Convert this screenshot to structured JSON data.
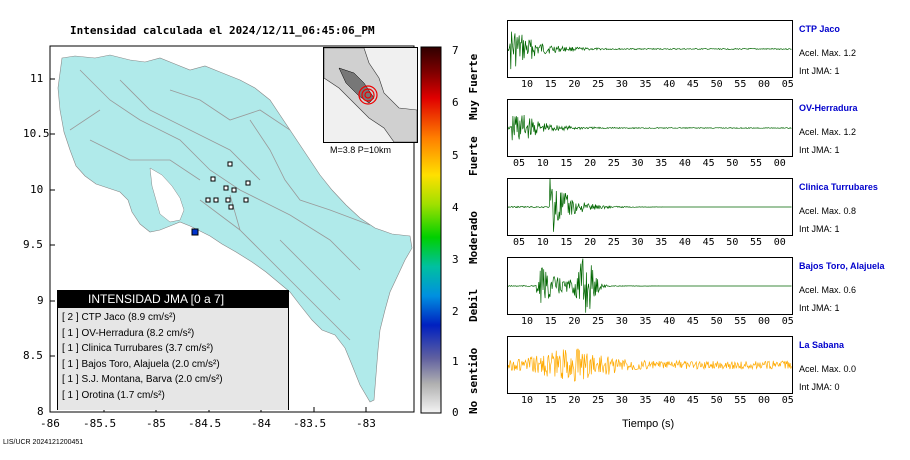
{
  "map": {
    "title": "Intensidad calculada el 2024/12/11_06:45:06_PM",
    "lat_ticks": [
      "11",
      "10.5",
      "10",
      "9.5",
      "9",
      "8.5",
      "8"
    ],
    "lon_ticks": [
      "-86",
      "-85.5",
      "-85",
      "-84.5",
      "-84",
      "-83.5",
      "-83"
    ],
    "event_text": "M=3.8 P=10km",
    "footer": "LIS/UCR 2024121200451"
  },
  "scale": {
    "ticks": [
      "7",
      "6",
      "5",
      "4",
      "3",
      "2",
      "1",
      "0"
    ],
    "labels": [
      "Muy Fuerte",
      "Fuerte",
      "Moderado",
      "Debil",
      "No sentido"
    ]
  },
  "legend": {
    "title": "INTENSIDAD JMA [0 a 7]",
    "rows": [
      "[ 2 ]  CTP Jaco (8.9 cm/s²)",
      "[ 1 ]  OV-Herradura (8.2 cm/s²)",
      "[ 1 ]  Clinica Turrubares (3.7 cm/s²)",
      "[ 1 ]  Bajos Toro, Alajuela (2.0 cm/s²)",
      "[ 1 ]  S.J. Montana, Barva (2.0 cm/s²)",
      "[ 1 ]  Orotina (1.7 cm/s²)"
    ]
  },
  "stations": [
    {
      "name": "CTP Jaco",
      "acc": "Acel. Max. 1.2",
      "int": "Int JMA: 1",
      "color": "#006600",
      "ticks": [
        "10",
        "15",
        "20",
        "25",
        "30",
        "35",
        "40",
        "45",
        "50",
        "55",
        "00",
        "05"
      ]
    },
    {
      "name": "OV-Herradura",
      "acc": "Acel. Max. 1.2",
      "int": "Int JMA: 1",
      "color": "#006600",
      "ticks": [
        "05",
        "10",
        "15",
        "20",
        "25",
        "30",
        "35",
        "40",
        "45",
        "50",
        "55",
        "00"
      ]
    },
    {
      "name": "Clinica Turrubares",
      "acc": "Acel. Max. 0.8",
      "int": "Int JMA: 1",
      "color": "#006600",
      "ticks": [
        "05",
        "10",
        "15",
        "20",
        "25",
        "30",
        "35",
        "40",
        "45",
        "50",
        "55",
        "00"
      ]
    },
    {
      "name": "Bajos Toro, Alajuela",
      "acc": "Acel. Max. 0.6",
      "int": "Int JMA: 1",
      "color": "#006600",
      "ticks": [
        "10",
        "15",
        "20",
        "25",
        "30",
        "35",
        "40",
        "45",
        "50",
        "55",
        "00",
        "05"
      ]
    },
    {
      "name": "La Sabana",
      "acc": "Acel. Max. 0.0",
      "int": "Int JMA: 0",
      "color": "#ffaa00",
      "ticks": [
        "10",
        "15",
        "20",
        "25",
        "30",
        "35",
        "40",
        "45",
        "50",
        "55",
        "00",
        "05"
      ]
    }
  ],
  "time_label": "Tiempo (s)",
  "colors": {
    "land": "#b0eaea",
    "sea": "#ffffff",
    "wave_green": "#006600",
    "wave_orange": "#ffaa00",
    "station_name": "#0000cc"
  }
}
